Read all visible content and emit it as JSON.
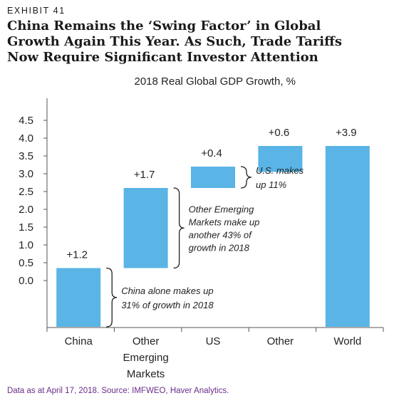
{
  "exhibit_label": "EXHIBIT 41",
  "title_lines": [
    "China Remains the ‘Swing Factor’ in Global",
    "Growth Again This Year. As Such, Trade Tariffs",
    "Now Require Significant Investor Attention"
  ],
  "source": "Data as at April 17, 2018. Source: IMFWEO, Haver Analytics.",
  "colors": {
    "bar": "#5ab4e5",
    "text": "#1a1a1a",
    "source": "#6a2c8a",
    "axis": "#555555"
  },
  "chart_data": {
    "type": "bar",
    "subtype": "waterfall",
    "title": "2018 Real Global GDP Growth, %",
    "xlabel": "",
    "ylabel": "",
    "ylim": [
      -0.6,
      5.0
    ],
    "yticks": [
      0.0,
      0.5,
      1.0,
      1.5,
      2.0,
      2.5,
      3.0,
      3.5,
      4.0,
      4.5
    ],
    "ytick_labels": [
      "0.0",
      "0.5",
      "1.0",
      "1.5",
      "2.0",
      "2.5",
      "3.0",
      "3.5",
      "4.0",
      "4.5"
    ],
    "grid": false,
    "legend": "none",
    "categories": [
      "China",
      "Other\nEmerging\nMarkets",
      "US",
      "Other",
      "World"
    ],
    "bars": [
      {
        "category": "China",
        "start": -1.2,
        "end": 0.35,
        "value": 1.2,
        "label": "+1.2"
      },
      {
        "category": "Other Emerging Markets",
        "start": 0.35,
        "end": 2.6,
        "value": 1.7,
        "label": "+1.7"
      },
      {
        "category": "US",
        "start": 2.6,
        "end": 3.2,
        "value": 0.4,
        "label": "+0.4"
      },
      {
        "category": "Other",
        "start": 3.05,
        "end": 3.78,
        "value": 0.6,
        "label": "+0.6"
      },
      {
        "category": "World",
        "start": -1.2,
        "end": 3.78,
        "value": 3.9,
        "label": "+3.9"
      }
    ],
    "annotations": [
      {
        "bar": 0,
        "lines": [
          "China alone makes up",
          "31% of growth in 2018"
        ]
      },
      {
        "bar": 1,
        "lines": [
          "Other Emerging",
          "Markets make up",
          "another 43% of",
          "growth in 2018"
        ]
      },
      {
        "bar": 2,
        "lines": [
          "U.S. makes",
          "up 11%"
        ]
      }
    ]
  }
}
